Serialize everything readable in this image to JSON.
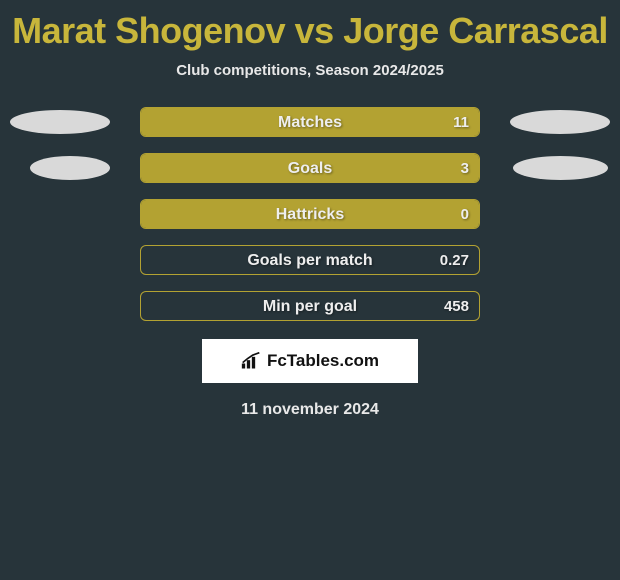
{
  "title": "Marat Shogenov vs Jorge Carrascal",
  "subtitle": "Club competitions, Season 2024/2025",
  "colors": {
    "background": "#27343a",
    "accent": "#c8b63b",
    "bar_fill": "#b3a232",
    "bar_border": "#b3a232",
    "text_light": "#e8e8e8",
    "oval": "#d9d9d9"
  },
  "stats": [
    {
      "label": "Matches",
      "value": "11",
      "fill_pct": 100,
      "left_oval": true,
      "right_oval": true,
      "oval_variant": 1
    },
    {
      "label": "Goals",
      "value": "3",
      "fill_pct": 100,
      "left_oval": true,
      "right_oval": true,
      "oval_variant": 2
    },
    {
      "label": "Hattricks",
      "value": "0",
      "fill_pct": 100,
      "left_oval": false,
      "right_oval": false,
      "oval_variant": 0
    },
    {
      "label": "Goals per match",
      "value": "0.27",
      "fill_pct": 0,
      "left_oval": false,
      "right_oval": false,
      "oval_variant": 0
    },
    {
      "label": "Min per goal",
      "value": "458",
      "fill_pct": 0,
      "left_oval": false,
      "right_oval": false,
      "oval_variant": 0
    }
  ],
  "logo_text": "FcTables.com",
  "date": "11 november 2024"
}
